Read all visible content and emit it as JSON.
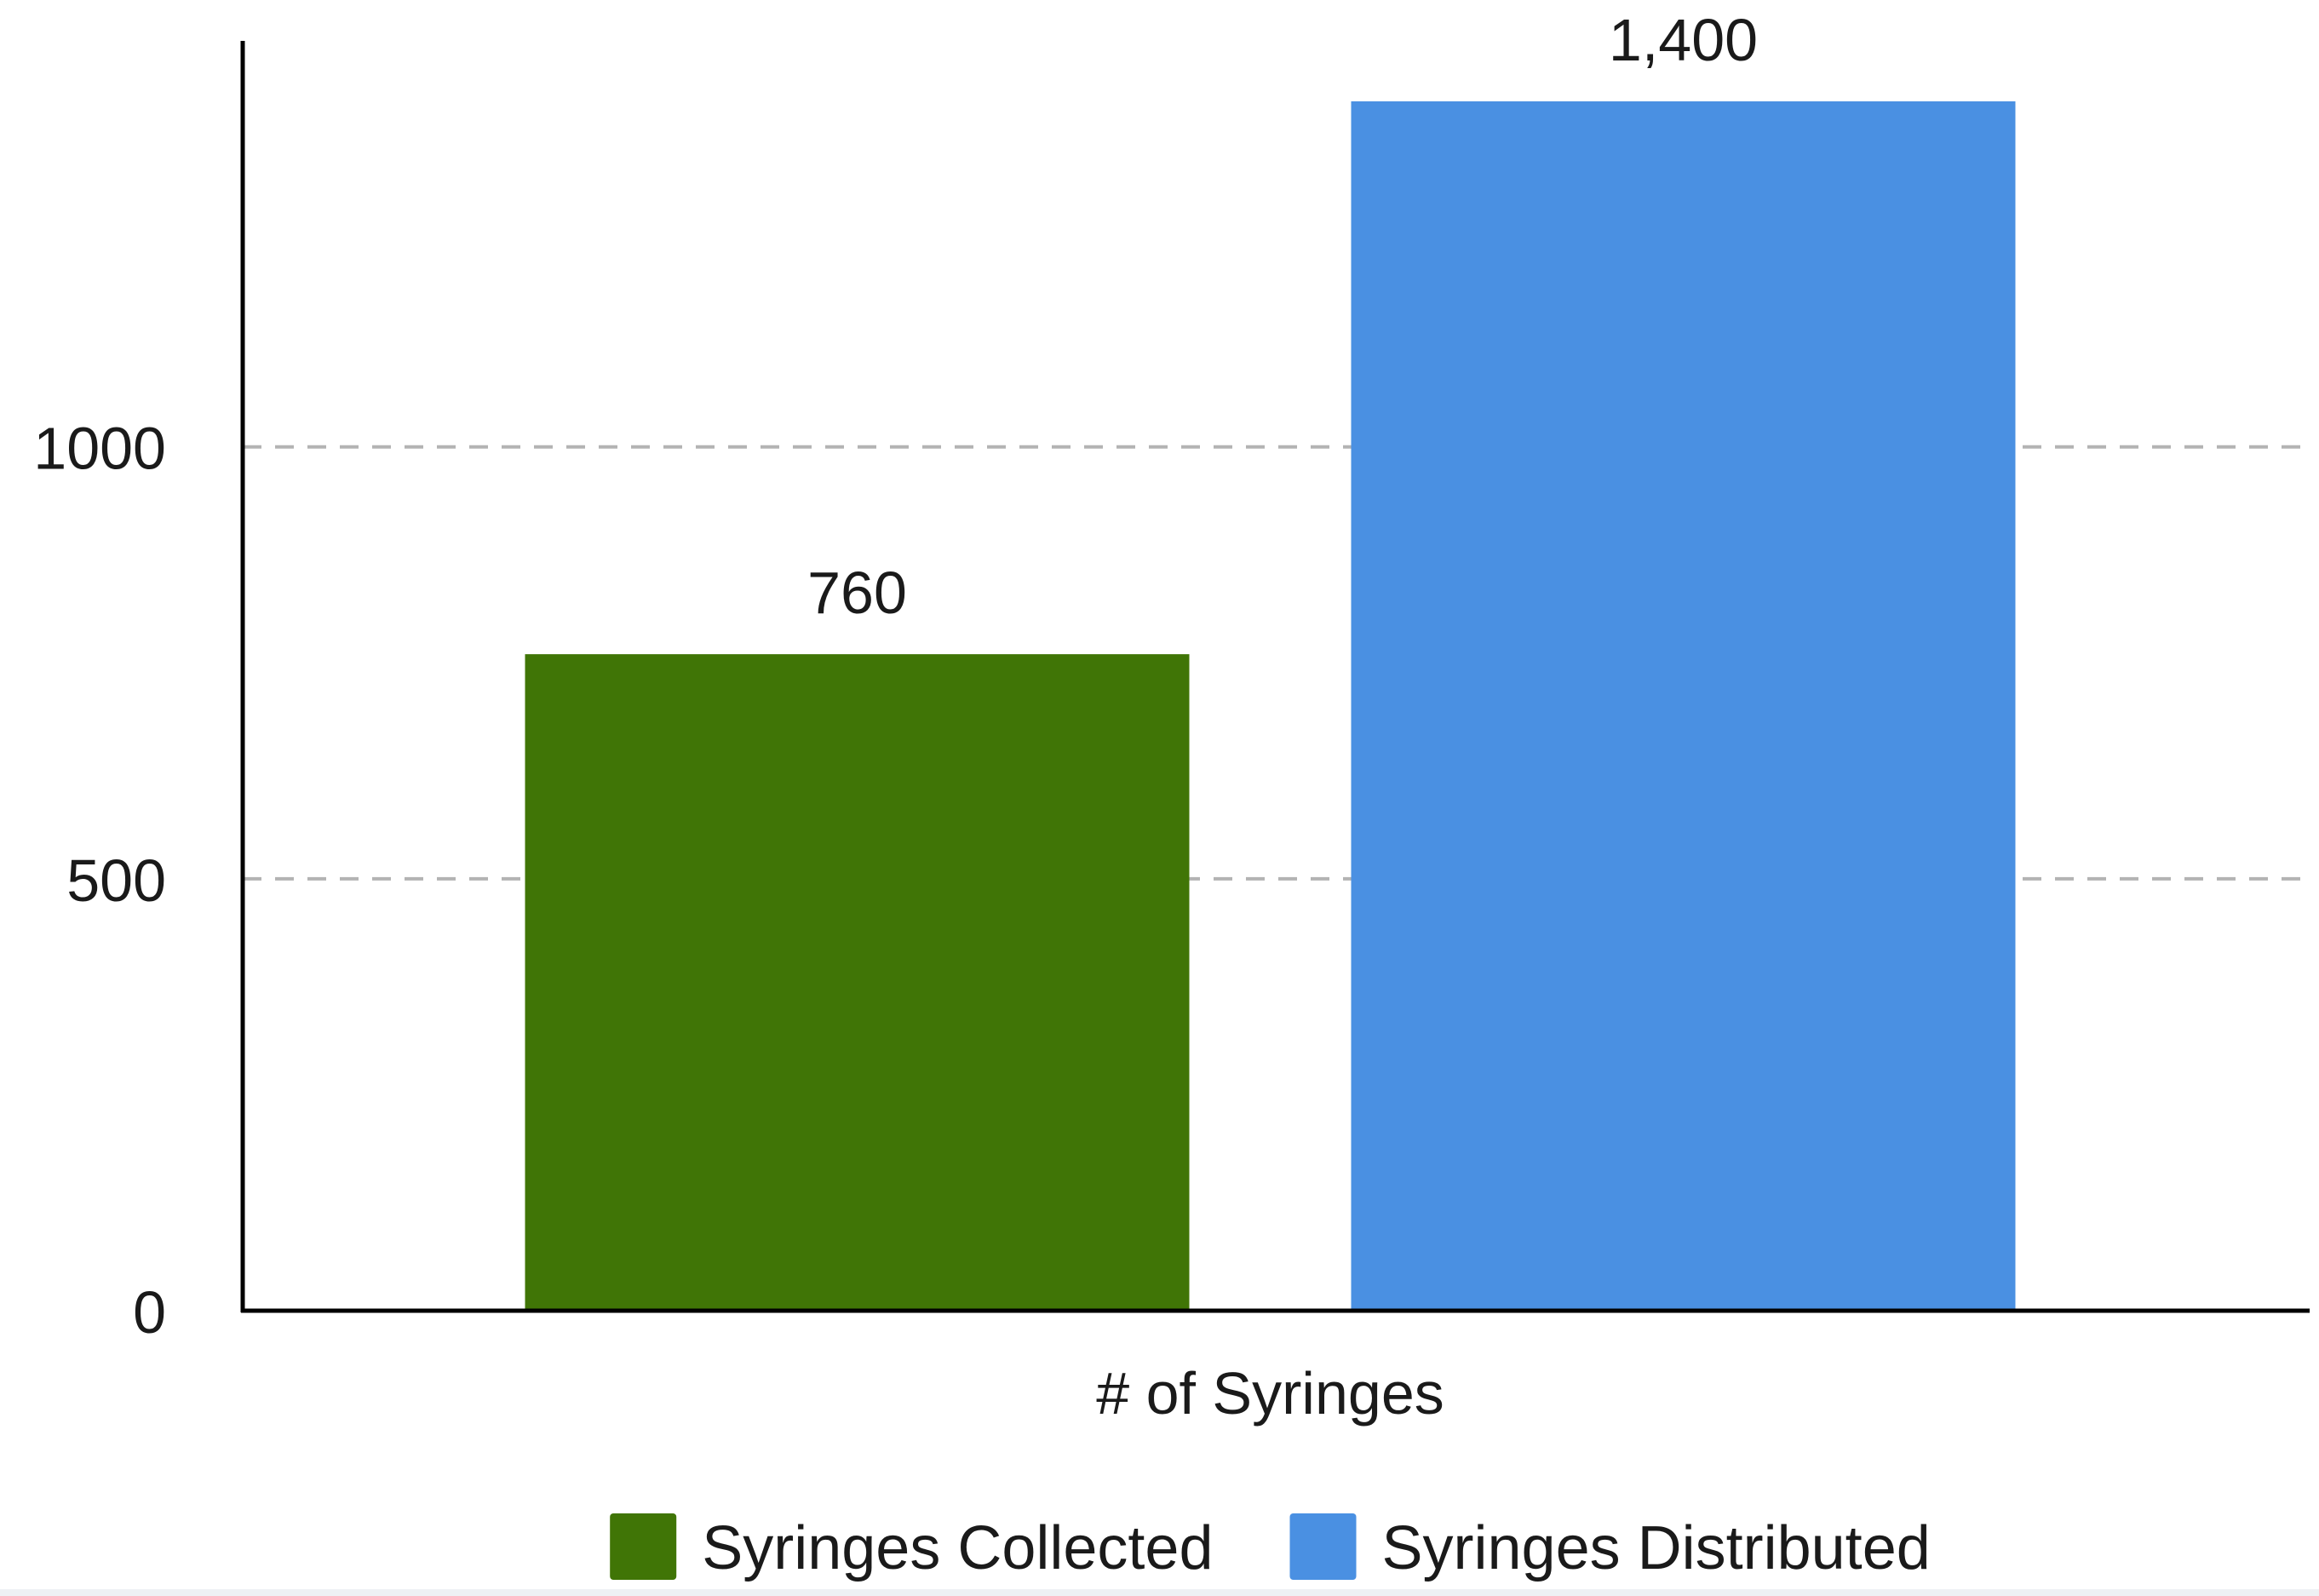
{
  "chart_data": {
    "type": "bar",
    "xlabel": "# of Syringes",
    "ylim": [
      0,
      1470
    ],
    "yticks": [
      0,
      500,
      1000
    ],
    "ytick_labels": [
      "0",
      "500",
      "1000"
    ],
    "grid": {
      "y": true,
      "style": "dashed"
    },
    "legend_position": "bottom",
    "series": [
      {
        "name": "Syringes Collected",
        "value": 760,
        "label": "760",
        "color": "#407506"
      },
      {
        "name": "Syringes Distributed",
        "value": 1400,
        "label": "1,400",
        "color": "#4a90e2"
      }
    ],
    "colors": {
      "axis": "#000000",
      "grid": "#b3b3b3",
      "text": "#1a1a1a"
    }
  }
}
